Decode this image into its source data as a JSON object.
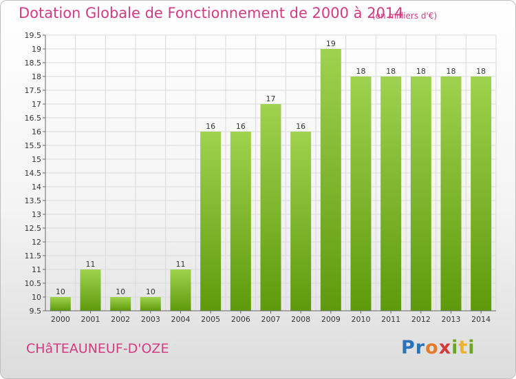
{
  "header": {
    "title": "Dotation Globale de Fonctionnement de 2000 à 2014",
    "subtitle": "(en milliers d'€)"
  },
  "footer": {
    "commune": "CHâTEAUNEUF-D'OZE",
    "logo_letters": [
      {
        "ch": "P",
        "color": "#2a73b8"
      },
      {
        "ch": "r",
        "color": "#2a73b8"
      },
      {
        "ch": "o",
        "color": "#e8792b"
      },
      {
        "ch": "x",
        "color": "#d43a3a"
      },
      {
        "ch": "i",
        "color": "#6aa623"
      },
      {
        "ch": "t",
        "color": "#e8b62b"
      },
      {
        "ch": "i",
        "color": "#6aa623"
      }
    ]
  },
  "colors": {
    "bar_light": "#9fd24e",
    "bar_dark": "#5e9a0c",
    "accent": "#d43a82"
  },
  "chart_data": {
    "type": "bar",
    "categories": [
      "2000",
      "2001",
      "2002",
      "2003",
      "2004",
      "2005",
      "2006",
      "2007",
      "2008",
      "2009",
      "2010",
      "2011",
      "2012",
      "2013",
      "2014"
    ],
    "values": [
      10,
      11,
      10,
      10,
      11,
      16,
      16,
      17,
      16,
      19,
      18,
      18,
      18,
      18,
      18
    ],
    "ylim": [
      9.5,
      19.5
    ],
    "yticks": [
      "9.5",
      "10",
      "10.5",
      "11",
      "11.5",
      "12",
      "12.5",
      "13",
      "13.5",
      "14",
      "14.5",
      "15",
      "15.5",
      "16",
      "16.5",
      "17",
      "17.5",
      "18",
      "18.5",
      "19",
      "19.5"
    ],
    "grid": true,
    "xlabel": "",
    "ylabel": ""
  }
}
